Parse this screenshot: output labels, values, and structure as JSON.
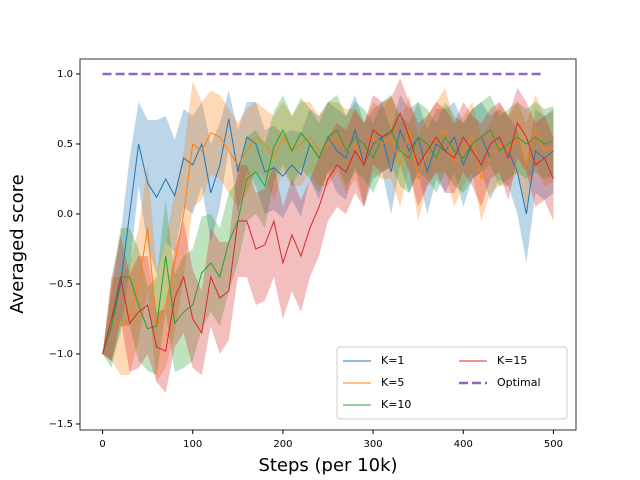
{
  "chart_data": {
    "type": "line",
    "xlabel": "Steps (per 10k)",
    "ylabel": "Averaged score",
    "xlim": [
      -25,
      525
    ],
    "ylim": [
      -1.543,
      1.107
    ],
    "xticks": [
      0,
      100,
      200,
      300,
      400,
      500
    ],
    "yticks": [
      {
        "value": -1.5,
        "label": "−1.5"
      },
      {
        "value": -1.0,
        "label": "−1.0"
      },
      {
        "value": -0.5,
        "label": "−0.5"
      },
      {
        "value": 0.0,
        "label": "0.0"
      },
      {
        "value": 0.5,
        "label": "0.5"
      },
      {
        "value": 1.0,
        "label": "1.0"
      }
    ],
    "legend": "lower right",
    "legend_columns": 2,
    "x": [
      0,
      10,
      20,
      30,
      40,
      50,
      60,
      70,
      80,
      90,
      100,
      110,
      120,
      130,
      140,
      150,
      160,
      170,
      180,
      190,
      200,
      210,
      220,
      230,
      240,
      250,
      260,
      270,
      280,
      290,
      300,
      310,
      320,
      330,
      340,
      350,
      360,
      370,
      380,
      390,
      400,
      410,
      420,
      430,
      440,
      450,
      460,
      470,
      480,
      490,
      500
    ],
    "series": [
      {
        "name": "K=1",
        "color": "#1f77b4",
        "values": [
          -1,
          -0.8,
          -0.5,
          0.0,
          0.5,
          0.22,
          0.12,
          0.25,
          0.13,
          0.4,
          0.35,
          0.5,
          0.15,
          0.35,
          0.68,
          0.3,
          0.55,
          0.5,
          0.3,
          0.33,
          0.27,
          0.35,
          0.28,
          0.5,
          0.4,
          0.55,
          0.45,
          0.4,
          0.6,
          0.35,
          0.5,
          0.55,
          0.3,
          0.6,
          0.45,
          0.55,
          0.3,
          0.5,
          0.45,
          0.55,
          0.35,
          0.5,
          0.55,
          0.4,
          0.5,
          0.45,
          0.3,
          0.0,
          0.45,
          0.4,
          0.45
        ],
        "error": [
          0,
          0.25,
          0.35,
          0.4,
          0.3,
          0.45,
          0.55,
          0.45,
          0.4,
          0.35,
          0.35,
          0.3,
          0.35,
          0.3,
          0.2,
          0.3,
          0.25,
          0.3,
          0.3,
          0.3,
          0.3,
          0.25,
          0.3,
          0.25,
          0.3,
          0.25,
          0.3,
          0.3,
          0.25,
          0.3,
          0.25,
          0.25,
          0.3,
          0.25,
          0.3,
          0.25,
          0.3,
          0.25,
          0.3,
          0.25,
          0.3,
          0.25,
          0.25,
          0.3,
          0.25,
          0.25,
          0.3,
          0.35,
          0.3,
          0.3,
          0.3
        ]
      },
      {
        "name": "K=5",
        "color": "#ff7f0e",
        "values": [
          -1,
          -0.75,
          -0.8,
          -0.75,
          -0.5,
          -0.1,
          -0.8,
          -0.65,
          -0.35,
          0.0,
          0.5,
          0.45,
          0.58,
          0.55,
          0.45,
          0.35,
          0.45,
          0.55,
          0.5,
          0.4,
          0.55,
          0.45,
          0.5,
          0.55,
          0.45,
          0.5,
          0.55,
          0.45,
          0.5,
          0.35,
          0.55,
          0.5,
          0.55,
          0.35,
          0.6,
          0.25,
          0.45,
          0.55,
          0.6,
          0.35,
          0.45,
          0.55,
          0.25,
          0.4,
          0.5,
          0.45,
          0.55,
          0.35,
          0.6,
          0.45,
          0.48
        ],
        "error": [
          0,
          0.3,
          0.35,
          0.4,
          0.4,
          0.45,
          0.4,
          0.45,
          0.5,
          0.45,
          0.45,
          0.35,
          0.3,
          0.3,
          0.3,
          0.3,
          0.3,
          0.25,
          0.25,
          0.3,
          0.25,
          0.25,
          0.3,
          0.25,
          0.25,
          0.3,
          0.25,
          0.3,
          0.25,
          0.3,
          0.25,
          0.25,
          0.3,
          0.3,
          0.25,
          0.3,
          0.25,
          0.25,
          0.3,
          0.3,
          0.25,
          0.25,
          0.3,
          0.25,
          0.3,
          0.25,
          0.25,
          0.3,
          0.25,
          0.25,
          0.25
        ]
      },
      {
        "name": "K=10",
        "color": "#2ca02c",
        "values": [
          -1,
          -0.8,
          -0.45,
          -0.45,
          -0.65,
          -0.82,
          -0.8,
          -0.3,
          -0.78,
          -0.7,
          -0.65,
          -0.42,
          -0.35,
          -0.45,
          -0.2,
          -0.05,
          0.25,
          0.3,
          0.2,
          0.48,
          0.6,
          0.45,
          0.58,
          0.5,
          0.4,
          0.55,
          0.6,
          0.45,
          0.55,
          0.5,
          0.4,
          0.55,
          0.6,
          0.45,
          0.4,
          0.55,
          0.5,
          0.4,
          0.55,
          0.45,
          0.4,
          0.5,
          0.55,
          0.6,
          0.45,
          0.5,
          0.55,
          0.5,
          0.55,
          0.5,
          0.52
        ],
        "error": [
          0,
          0.3,
          0.35,
          0.35,
          0.4,
          0.3,
          0.35,
          0.4,
          0.35,
          0.4,
          0.4,
          0.4,
          0.35,
          0.35,
          0.35,
          0.3,
          0.3,
          0.3,
          0.3,
          0.25,
          0.25,
          0.25,
          0.25,
          0.25,
          0.25,
          0.25,
          0.25,
          0.25,
          0.25,
          0.25,
          0.25,
          0.25,
          0.25,
          0.25,
          0.25,
          0.25,
          0.25,
          0.25,
          0.25,
          0.25,
          0.25,
          0.25,
          0.25,
          0.25,
          0.25,
          0.25,
          0.25,
          0.25,
          0.25,
          0.25,
          0.25
        ]
      },
      {
        "name": "K=15",
        "color": "#d62728",
        "values": [
          -1,
          -0.75,
          -0.45,
          -0.78,
          -0.7,
          -0.65,
          -0.95,
          -0.98,
          -0.6,
          -0.45,
          -0.75,
          -0.85,
          -0.45,
          -0.6,
          -0.55,
          -0.05,
          -0.05,
          -0.25,
          -0.22,
          -0.05,
          -0.35,
          -0.15,
          -0.3,
          -0.1,
          0.05,
          0.25,
          0.35,
          0.3,
          0.45,
          0.35,
          0.6,
          0.55,
          0.58,
          0.72,
          0.55,
          0.35,
          0.45,
          0.55,
          0.45,
          0.4,
          0.55,
          0.45,
          0.35,
          0.5,
          0.55,
          0.4,
          0.65,
          0.55,
          0.35,
          0.4,
          0.25
        ],
        "error": [
          0,
          0.3,
          0.3,
          0.35,
          0.4,
          0.35,
          0.25,
          0.3,
          0.35,
          0.4,
          0.35,
          0.3,
          0.35,
          0.4,
          0.35,
          0.4,
          0.4,
          0.4,
          0.4,
          0.4,
          0.4,
          0.4,
          0.4,
          0.35,
          0.35,
          0.3,
          0.3,
          0.3,
          0.3,
          0.3,
          0.25,
          0.25,
          0.25,
          0.25,
          0.25,
          0.3,
          0.25,
          0.25,
          0.3,
          0.25,
          0.25,
          0.25,
          0.3,
          0.25,
          0.25,
          0.3,
          0.25,
          0.25,
          0.3,
          0.3,
          0.3
        ]
      },
      {
        "name": "Optimal",
        "color": "#9467bd",
        "dashed": true,
        "x": [
          0,
          490
        ],
        "values": [
          1,
          1
        ]
      }
    ]
  }
}
